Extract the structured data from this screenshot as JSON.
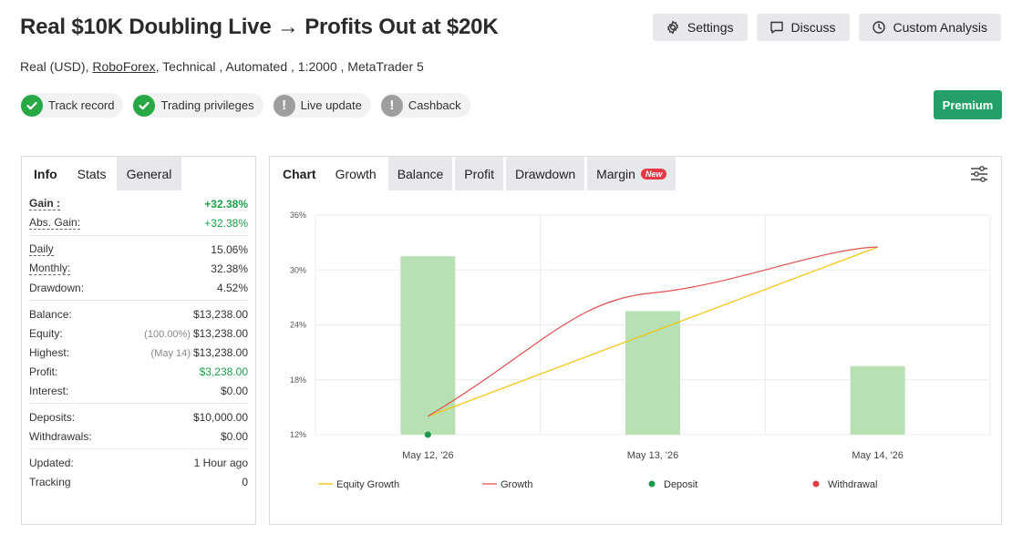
{
  "title": "Real $10K Doubling Live → Profits Out at $20K",
  "actions": [
    {
      "label": "Settings",
      "icon": "gear-icon"
    },
    {
      "label": "Discuss",
      "icon": "chat-icon"
    },
    {
      "label": "Custom Analysis",
      "icon": "clock-icon"
    }
  ],
  "subtitle": {
    "account_type": "Real (USD),",
    "broker": "RoboForex",
    "details": ", Technical , Automated , 1:2000 , MetaTrader 5"
  },
  "badges": [
    {
      "label": "Track record",
      "status": "ok"
    },
    {
      "label": "Trading privileges",
      "status": "ok"
    },
    {
      "label": "Live update",
      "status": "na"
    },
    {
      "label": "Cashback",
      "status": "na"
    }
  ],
  "premium_label": "Premium",
  "left_tabs": [
    "Info",
    "Stats",
    "General"
  ],
  "stats": {
    "gain": {
      "label": "Gain :",
      "value": "+32.38%"
    },
    "abs_gain": {
      "label": "Abs. Gain:",
      "value": "+32.38%"
    },
    "daily": {
      "label": "Daily",
      "value": "15.06%"
    },
    "monthly": {
      "label": "Monthly:",
      "value": "32.38%"
    },
    "drawdown": {
      "label": "Drawdown:",
      "value": "4.52%"
    },
    "balance": {
      "label": "Balance:",
      "value": "$13,238.00"
    },
    "equity": {
      "label": "Equity:",
      "pre": "(100.00%)",
      "value": "$13,238.00"
    },
    "highest": {
      "label": "Highest:",
      "pre": "(May 14)",
      "value": "$13,238.00"
    },
    "profit": {
      "label": "Profit:",
      "value": "$3,238.00"
    },
    "interest": {
      "label": "Interest:",
      "value": "$0.00"
    },
    "deposits": {
      "label": "Deposits:",
      "value": "$10,000.00"
    },
    "withdrawals": {
      "label": "Withdrawals:",
      "value": "$0.00"
    },
    "updated": {
      "label": "Updated:",
      "value": "1 Hour ago"
    },
    "tracking": {
      "label": "Tracking",
      "value": "0"
    }
  },
  "chart_tabs": [
    {
      "label": "Chart"
    },
    {
      "label": "Growth"
    },
    {
      "label": "Balance"
    },
    {
      "label": "Profit"
    },
    {
      "label": "Drawdown"
    },
    {
      "label": "Margin",
      "badge": "New"
    }
  ],
  "colors": {
    "equity_line": "#f2c200",
    "growth_line": "#e0524d",
    "bars": "#b7e0b4",
    "deposit": "#1a9b4b",
    "withdrawal": "#e53946",
    "green_text": "#1aa14a",
    "premium": "#26a069"
  },
  "chart_data": {
    "type": "line",
    "categories": [
      "May 12, '26",
      "May 13, '26",
      "May 14, '26"
    ],
    "y_ticks": [
      "36%",
      "30%",
      "24%",
      "18%",
      "12%"
    ],
    "ylim": [
      12,
      36
    ],
    "bars": {
      "values": [
        31.5,
        25.5,
        19.5
      ]
    },
    "series": [
      {
        "name": "Equity Growth",
        "x": [
          0,
          2
        ],
        "values": [
          14,
          32.5
        ]
      },
      {
        "name": "Growth",
        "x": [
          0,
          1,
          2
        ],
        "values": [
          14,
          27.5,
          32.5
        ]
      }
    ],
    "deposits": [
      {
        "x": 0,
        "y": 12
      }
    ],
    "withdrawals": [],
    "legend": [
      "Equity Growth",
      "Growth",
      "Deposit",
      "Withdrawal"
    ],
    "legend_position": "bottom",
    "grid": true
  }
}
